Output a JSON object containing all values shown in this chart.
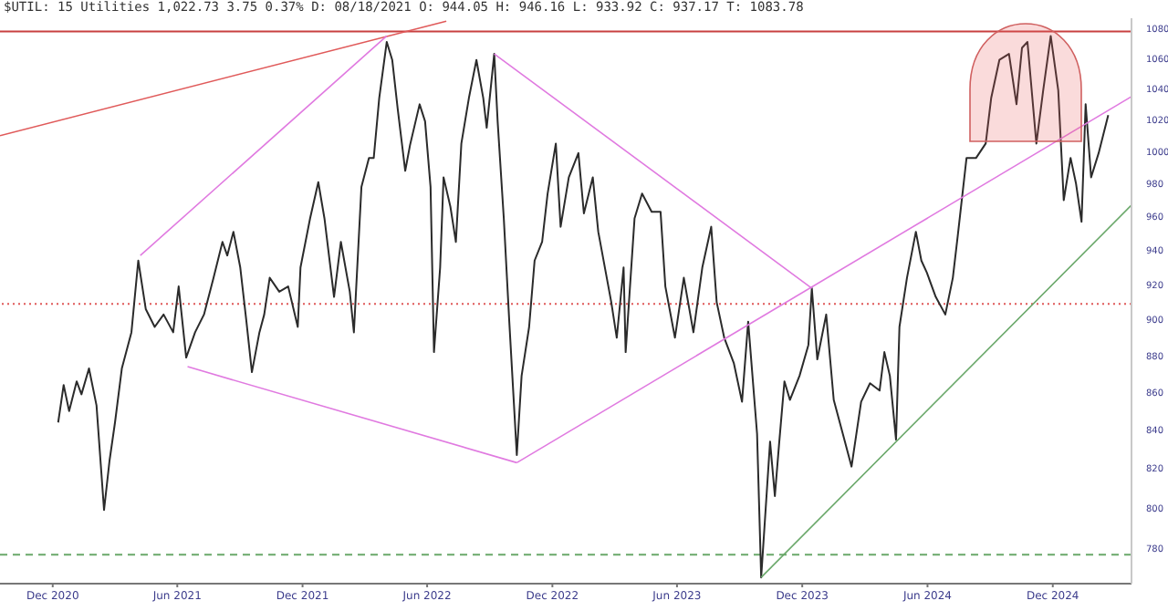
{
  "chart_data": {
    "type": "line",
    "title": "$UTIL: 15 Utilities 1,022.73 3.75 0.37% D: 08/18/2021 O: 944.05 H: 946.16 L: 933.92 C: 937.17 T: 1083.78",
    "log": "y",
    "xlim": [
      "2020-09-15",
      "2025-03-26"
    ],
    "xticks": [
      {
        "value": "2020-12-01",
        "label": "Dec 2020"
      },
      {
        "value": "2021-06-01",
        "label": "Jun 2021"
      },
      {
        "value": "2021-12-01",
        "label": "Dec 2021"
      },
      {
        "value": "2022-06-01",
        "label": "Jun 2022"
      },
      {
        "value": "2022-12-01",
        "label": "Dec 2022"
      },
      {
        "value": "2023-06-01",
        "label": "Jun 2023"
      },
      {
        "value": "2023-12-01",
        "label": "Dec 2023"
      },
      {
        "value": "2024-06-01",
        "label": "Jun 2024"
      },
      {
        "value": "2024-12-01",
        "label": "Dec 2024"
      }
    ],
    "ylim": [
      763,
      1087
    ],
    "yticks": [
      780,
      800,
      820,
      840,
      860,
      880,
      900,
      920,
      940,
      960,
      980,
      1000,
      1020,
      1040,
      1060,
      1080
    ],
    "x": [
      "2020-12-09",
      "2020-12-17",
      "2020-12-25",
      "2021-01-05",
      "2021-01-12",
      "2021-01-23",
      "2021-02-03",
      "2021-02-14",
      "2021-02-22",
      "2021-03-02",
      "2021-03-12",
      "2021-03-26",
      "2021-04-05",
      "2021-04-16",
      "2021-04-29",
      "2021-05-12",
      "2021-05-26",
      "2021-06-03",
      "2021-06-14",
      "2021-06-27",
      "2021-07-10",
      "2021-07-24",
      "2021-08-06",
      "2021-08-13",
      "2021-08-22",
      "2021-09-01",
      "2021-09-10",
      "2021-09-18",
      "2021-09-29",
      "2021-10-06",
      "2021-10-14",
      "2021-10-28",
      "2021-11-10",
      "2021-11-24",
      "2021-11-28",
      "2021-12-12",
      "2021-12-24",
      "2022-01-02",
      "2022-01-16",
      "2022-01-26",
      "2022-02-08",
      "2022-02-14",
      "2022-02-25",
      "2022-03-08",
      "2022-03-15",
      "2022-03-23",
      "2022-04-03",
      "2022-04-11",
      "2022-04-19",
      "2022-04-30",
      "2022-05-07",
      "2022-05-21",
      "2022-05-29",
      "2022-06-06",
      "2022-06-11",
      "2022-06-20",
      "2022-06-25",
      "2022-07-05",
      "2022-07-13",
      "2022-07-21",
      "2022-08-01",
      "2022-08-12",
      "2022-08-22",
      "2022-08-27",
      "2022-09-07",
      "2022-09-12",
      "2022-09-21",
      "2022-09-29",
      "2022-10-10",
      "2022-10-17",
      "2022-10-28",
      "2022-11-05",
      "2022-11-16",
      "2022-11-24",
      "2022-12-06",
      "2022-12-13",
      "2022-12-25",
      "2023-01-08",
      "2023-01-16",
      "2023-01-29",
      "2023-02-06",
      "2023-02-25",
      "2023-03-05",
      "2023-03-15",
      "2023-03-18",
      "2023-03-31",
      "2023-04-11",
      "2023-04-25",
      "2023-05-08",
      "2023-05-15",
      "2023-05-29",
      "2023-06-11",
      "2023-06-25",
      "2023-07-08",
      "2023-07-21",
      "2023-07-29",
      "2023-08-09",
      "2023-08-23",
      "2023-09-04",
      "2023-09-13",
      "2023-09-26",
      "2023-10-02",
      "2023-10-15",
      "2023-10-22",
      "2023-10-28",
      "2023-11-05",
      "2023-11-13",
      "2023-11-27",
      "2023-12-10",
      "2023-12-15",
      "2023-12-23",
      "2024-01-05",
      "2024-01-16",
      "2024-01-30",
      "2024-02-11",
      "2024-02-25",
      "2024-03-09",
      "2024-03-23",
      "2024-03-30",
      "2024-04-07",
      "2024-04-16",
      "2024-04-21",
      "2024-05-02",
      "2024-05-15",
      "2024-05-23",
      "2024-05-31",
      "2024-06-13",
      "2024-06-27",
      "2024-07-08",
      "2024-07-15",
      "2024-07-28",
      "2024-08-11",
      "2024-08-25",
      "2024-09-02",
      "2024-09-14",
      "2024-09-28",
      "2024-10-09",
      "2024-10-17",
      "2024-10-25",
      "2024-11-07",
      "2024-11-17",
      "2024-11-28",
      "2024-12-09",
      "2024-12-17",
      "2024-12-27",
      "2025-01-04",
      "2025-01-12",
      "2025-01-18",
      "2025-01-26",
      "2025-02-06",
      "2025-02-20"
    ],
    "series": [
      {
        "color": "#2b2b2b",
        "values": [
          844,
          864,
          850,
          866,
          859,
          873,
          853,
          799,
          824,
          844,
          873,
          893,
          934,
          906,
          896,
          903,
          893,
          919,
          879,
          893,
          903,
          924,
          945,
          937,
          951,
          930,
          899,
          871,
          893,
          903,
          924,
          916,
          919,
          896,
          930,
          959,
          981,
          959,
          913,
          945,
          916,
          893,
          978,
          996,
          996,
          1034,
          1071,
          1059,
          1027,
          988,
          1004,
          1030,
          1019,
          978,
          882,
          930,
          984,
          966,
          945,
          1005,
          1034,
          1059,
          1034,
          1015,
          1063,
          1019,
          959,
          899,
          827,
          869,
          896,
          934,
          945,
          974,
          1005,
          954,
          984,
          999,
          962,
          984,
          951,
          910,
          890,
          930,
          882,
          959,
          974,
          963,
          963,
          919,
          890,
          924,
          893,
          930,
          954,
          910,
          890,
          876,
          855,
          899,
          838,
          766,
          834,
          806,
          832,
          866,
          856,
          869,
          886,
          918,
          878,
          903,
          856,
          837,
          821,
          855,
          865,
          861,
          882,
          869,
          835,
          896,
          924,
          951,
          934,
          927,
          913,
          903,
          924,
          948,
          996,
          996,
          1005,
          1034,
          1059,
          1063,
          1030,
          1067,
          1071,
          1005,
          1039,
          1075,
          1039,
          970,
          996,
          980,
          957,
          1030,
          984,
          999,
          1023
        ]
      },
      {
        "color": "#e05a5a",
        "x": [
          "2020-09-15",
          "2022-06-29"
        ],
        "values": [
          1010,
          1085
        ]
      },
      {
        "color": "#e07ae0",
        "x": [
          "2021-04-08",
          "2022-04-03"
        ],
        "values": [
          937,
          1075
        ]
      },
      {
        "color": "#e07ae0",
        "x": [
          "2021-06-16",
          "2022-10-10"
        ],
        "values": [
          874,
          823
        ]
      },
      {
        "color": "#e07ae0",
        "x": [
          "2022-10-10",
          "2025-03-26"
        ],
        "values": [
          823,
          1035
        ]
      },
      {
        "color": "#e07ae0",
        "x": [
          "2022-09-07",
          "2023-12-15"
        ],
        "values": [
          1063,
          918
        ]
      },
      {
        "color": "#6aa86a",
        "x": [
          "2023-10-02",
          "2025-03-26"
        ],
        "values": [
          766,
          967
        ]
      }
    ],
    "ref_lines": [
      {
        "axis": "y",
        "value": 909,
        "color": "#e05a5a",
        "line_style": "dotted"
      },
      {
        "axis": "y",
        "value": 1078,
        "color": "#c84040",
        "line_style": "solid"
      },
      {
        "axis": "y",
        "value": 777,
        "color": "#6aa86a",
        "line_style": "dashed"
      }
    ]
  }
}
